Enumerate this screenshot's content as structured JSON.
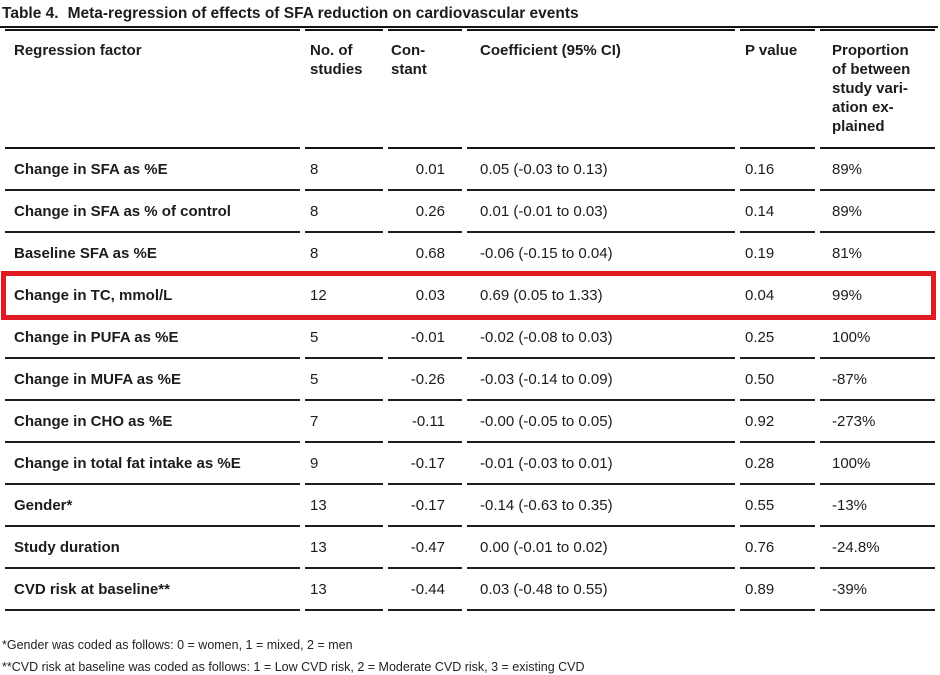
{
  "title": {
    "label": "Table 4.",
    "text": "Meta-regression of effects of SFA reduction on cardiovascular events"
  },
  "highlight_color": "#e11b22",
  "table": {
    "columns": [
      "Regression factor",
      "No. of\nstudies",
      "Con-\nstant",
      "Coefficient (95% CI)",
      "P value",
      "Proportion\nof between\nstudy vari-\nation ex-\nplained"
    ],
    "rows": [
      {
        "factor": "Change in SFA as %E",
        "studies": 8,
        "constant": "0.01",
        "coefficient": "0.05 (-0.03 to 0.13)",
        "p_value": "0.16",
        "proportion": "89%",
        "highlighted": false
      },
      {
        "factor": "Change in SFA as % of control",
        "studies": 8,
        "constant": "0.26",
        "coefficient": "0.01 (-0.01 to 0.03)",
        "p_value": "0.14",
        "proportion": "89%",
        "highlighted": false
      },
      {
        "factor": "Baseline SFA as %E",
        "studies": 8,
        "constant": "0.68",
        "coefficient": "-0.06 (-0.15 to 0.04)",
        "p_value": "0.19",
        "proportion": "81%",
        "highlighted": false
      },
      {
        "factor": "Change in TC, mmol/L",
        "studies": 12,
        "constant": "0.03",
        "coefficient": "0.69 (0.05 to 1.33)",
        "p_value": "0.04",
        "proportion": "99%",
        "highlighted": true
      },
      {
        "factor": "Change in PUFA as %E",
        "studies": 5,
        "constant": "-0.01",
        "coefficient": "-0.02 (-0.08 to 0.03)",
        "p_value": "0.25",
        "proportion": "100%",
        "highlighted": false
      },
      {
        "factor": "Change in MUFA as %E",
        "studies": 5,
        "constant": "-0.26",
        "coefficient": "-0.03 (-0.14 to 0.09)",
        "p_value": "0.50",
        "proportion": "-87%",
        "highlighted": false
      },
      {
        "factor": "Change in CHO as %E",
        "studies": 7,
        "constant": "-0.11",
        "coefficient": "-0.00 (-0.05 to 0.05)",
        "p_value": "0.92",
        "proportion": "-273%",
        "highlighted": false
      },
      {
        "factor": "Change in total fat intake as %E",
        "studies": 9,
        "constant": "-0.17",
        "coefficient": "-0.01 (-0.03 to 0.01)",
        "p_value": "0.28",
        "proportion": "100%",
        "highlighted": false
      },
      {
        "factor": "Gender*",
        "studies": 13,
        "constant": "-0.17",
        "coefficient": "-0.14 (-0.63 to 0.35)",
        "p_value": "0.55",
        "proportion": "-13%",
        "highlighted": false
      },
      {
        "factor": "Study duration",
        "studies": 13,
        "constant": "-0.47",
        "coefficient": "0.00 (-0.01 to 0.02)",
        "p_value": "0.76",
        "proportion": "-24.8%",
        "highlighted": false
      },
      {
        "factor": "CVD risk at baseline**",
        "studies": 13,
        "constant": "-0.44",
        "coefficient": "0.03 (-0.48 to 0.55)",
        "p_value": "0.89",
        "proportion": "-39%",
        "highlighted": false
      }
    ]
  },
  "footnotes": [
    "*Gender was coded as follows: 0 = women, 1 = mixed, 2 = men",
    "**CVD risk at baseline was coded as follows: 1 = Low CVD risk, 2 = Moderate CVD risk, 3 = existing CVD"
  ]
}
